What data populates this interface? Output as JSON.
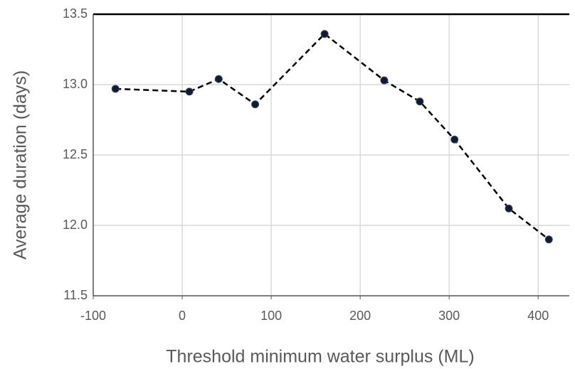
{
  "chart_data": {
    "type": "line",
    "x_label": "Threshold minimum water surplus (ML)",
    "y_label": "Average duration (days)",
    "x": [
      -75,
      8,
      41,
      82,
      160,
      227,
      267,
      306,
      367,
      412
    ],
    "series": [
      {
        "color": "#0d1b33",
        "values": [
          12.97,
          12.95,
          13.04,
          12.86,
          13.36,
          13.03,
          12.88,
          12.61,
          12.12,
          11.9
        ]
      }
    ],
    "xlim": [
      -100,
      435
    ],
    "xticks": [
      -100,
      0,
      100,
      200,
      300,
      400
    ],
    "ylim": [
      11.5,
      13.5
    ],
    "yticks": [
      11.5,
      {
        "value": 12.0,
        "label": "12.0"
      },
      12.5,
      {
        "value": 13.0,
        "label": "13.0"
      },
      13.5
    ],
    "grid": true
  }
}
